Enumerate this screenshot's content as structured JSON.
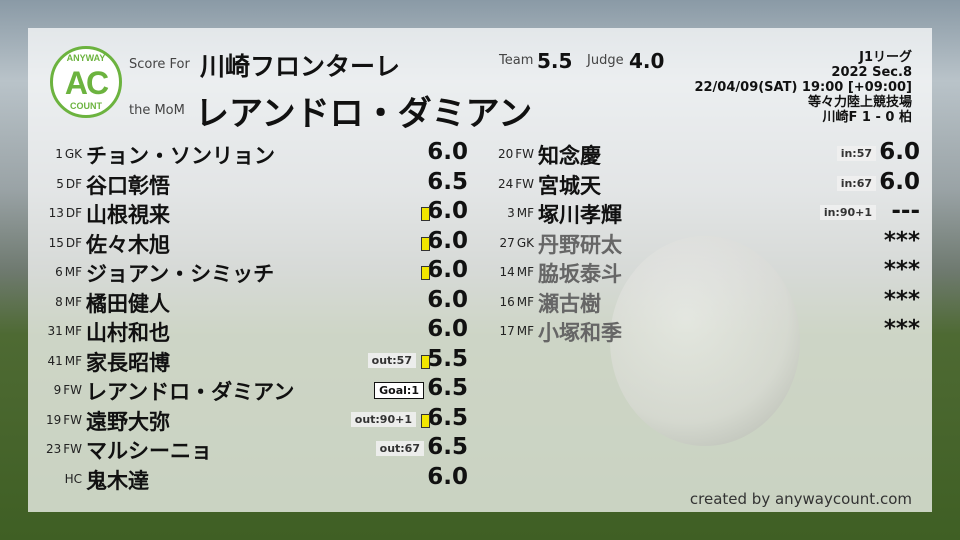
{
  "header": {
    "logo_top": "ANYWAY",
    "logo_mid": "AC",
    "logo_bottom": "COUNT",
    "score_for_label": "Score For",
    "team_name": "川崎フロンターレ",
    "mom_label": "the MoM",
    "mom_name": "レアンドロ・ダミアン",
    "team_label": "Team",
    "team_score": "5.5",
    "judge_label": "Judge",
    "judge_score": "4.0"
  },
  "match": {
    "league": "J1リーグ",
    "section": "2022 Sec.8",
    "datetime": "22/04/09(SAT) 19:00 [+09:00]",
    "venue": "等々力陸上競技場",
    "result": "川崎F 1 - 0 柏"
  },
  "left_players": [
    {
      "num": "1",
      "pos": "GK",
      "name": "チョン・ソンリョン",
      "score": "6.0",
      "tag": "",
      "card": false
    },
    {
      "num": "5",
      "pos": "DF",
      "name": "谷口彰悟",
      "score": "6.5",
      "tag": "",
      "card": false
    },
    {
      "num": "13",
      "pos": "DF",
      "name": "山根視来",
      "score": "6.0",
      "tag": "",
      "card": true
    },
    {
      "num": "15",
      "pos": "DF",
      "name": "佐々木旭",
      "score": "6.0",
      "tag": "",
      "card": true
    },
    {
      "num": "6",
      "pos": "MF",
      "name": "ジョアン・シミッチ",
      "score": "6.0",
      "tag": "",
      "card": true
    },
    {
      "num": "8",
      "pos": "MF",
      "name": "橘田健人",
      "score": "6.0",
      "tag": "",
      "card": false
    },
    {
      "num": "31",
      "pos": "MF",
      "name": "山村和也",
      "score": "6.0",
      "tag": "",
      "card": false
    },
    {
      "num": "41",
      "pos": "MF",
      "name": "家長昭博",
      "score": "5.5",
      "tag": "out:57",
      "card": true
    },
    {
      "num": "9",
      "pos": "FW",
      "name": "レアンドロ・ダミアン",
      "score": "6.5",
      "tag": "Goal:1",
      "goal": true,
      "card": false
    },
    {
      "num": "19",
      "pos": "FW",
      "name": "遠野大弥",
      "score": "6.5",
      "tag": "out:90+1",
      "card": true
    },
    {
      "num": "23",
      "pos": "FW",
      "name": "マルシーニョ",
      "score": "6.5",
      "tag": "out:67",
      "card": false
    },
    {
      "num": "",
      "pos": "HC",
      "name": "鬼木達",
      "score": "6.0",
      "tag": "",
      "card": false
    }
  ],
  "right_players": [
    {
      "num": "20",
      "pos": "FW",
      "name": "知念慶",
      "score": "6.0",
      "tag": "in:57",
      "grey": false
    },
    {
      "num": "24",
      "pos": "FW",
      "name": "宮城天",
      "score": "6.0",
      "tag": "in:67",
      "grey": false
    },
    {
      "num": "3",
      "pos": "MF",
      "name": "塚川孝輝",
      "score": "---",
      "tag": "in:90+1",
      "grey": false
    },
    {
      "num": "27",
      "pos": "GK",
      "name": "丹野研太",
      "score": "***",
      "tag": "",
      "grey": true
    },
    {
      "num": "14",
      "pos": "MF",
      "name": "脇坂泰斗",
      "score": "***",
      "tag": "",
      "grey": true
    },
    {
      "num": "16",
      "pos": "MF",
      "name": "瀬古樹",
      "score": "***",
      "tag": "",
      "grey": true
    },
    {
      "num": "17",
      "pos": "MF",
      "name": "小塚和季",
      "score": "***",
      "tag": "",
      "grey": true
    }
  ],
  "footer": {
    "credit": "created by anywaycount.com"
  },
  "colors": {
    "accent": "#6cb33f",
    "yellow_card": "#f2e600"
  }
}
